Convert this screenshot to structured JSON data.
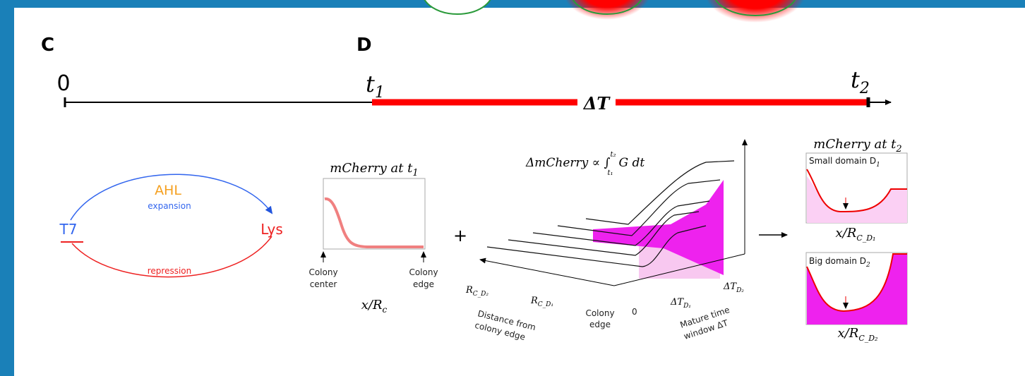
{
  "panels": {
    "c": "C",
    "d": "D"
  },
  "timeline": {
    "start": "0",
    "t1": {
      "base": "t",
      "sub": "1"
    },
    "delta": "ΔT",
    "t2": {
      "base": "t",
      "sub": "2"
    }
  },
  "circuit": {
    "signal": "AHL",
    "signal_role": "expansion",
    "promoter": "T7",
    "lysis": "Lys",
    "feedback_role": "repression"
  },
  "initial_plot": {
    "title": {
      "base": "mCherry at t",
      "sub": "1"
    },
    "left_label": [
      "Colony",
      "center"
    ],
    "right_label": [
      "Colony",
      "edge"
    ],
    "x_label": {
      "base": "x/R",
      "sub": "c"
    }
  },
  "plus": "+",
  "integral_panel": {
    "formula": {
      "lhs": "ΔmCherry ∝ ∫",
      "upper": "t₂",
      "lower": "t₁",
      "rhs": "G dt"
    },
    "r_d2": {
      "base": "R",
      "sub": "C_D₂"
    },
    "r_d1": {
      "base": "R",
      "sub": "C_D₁"
    },
    "distance_label": [
      "Distance from",
      "colony edge"
    ],
    "edge_label": [
      "Colony",
      "edge"
    ],
    "zero": "0",
    "dt_d1": {
      "base": "ΔT",
      "sub": "D₁"
    },
    "dt_d2": {
      "base": "ΔT",
      "sub": "D₂"
    },
    "time_label": [
      "Mature time",
      "window ΔT"
    ]
  },
  "final_plots": {
    "title": {
      "base": "mCherry at t",
      "sub": "2"
    },
    "small": {
      "label": {
        "base": "Small domain D",
        "sub": "1"
      },
      "x_label": {
        "base": "x/R",
        "sub": "C_D₁"
      }
    },
    "big": {
      "label": {
        "base": "Big domain D",
        "sub": "2"
      },
      "x_label": {
        "base": "x/R",
        "sub": "C_D₂"
      }
    }
  }
}
